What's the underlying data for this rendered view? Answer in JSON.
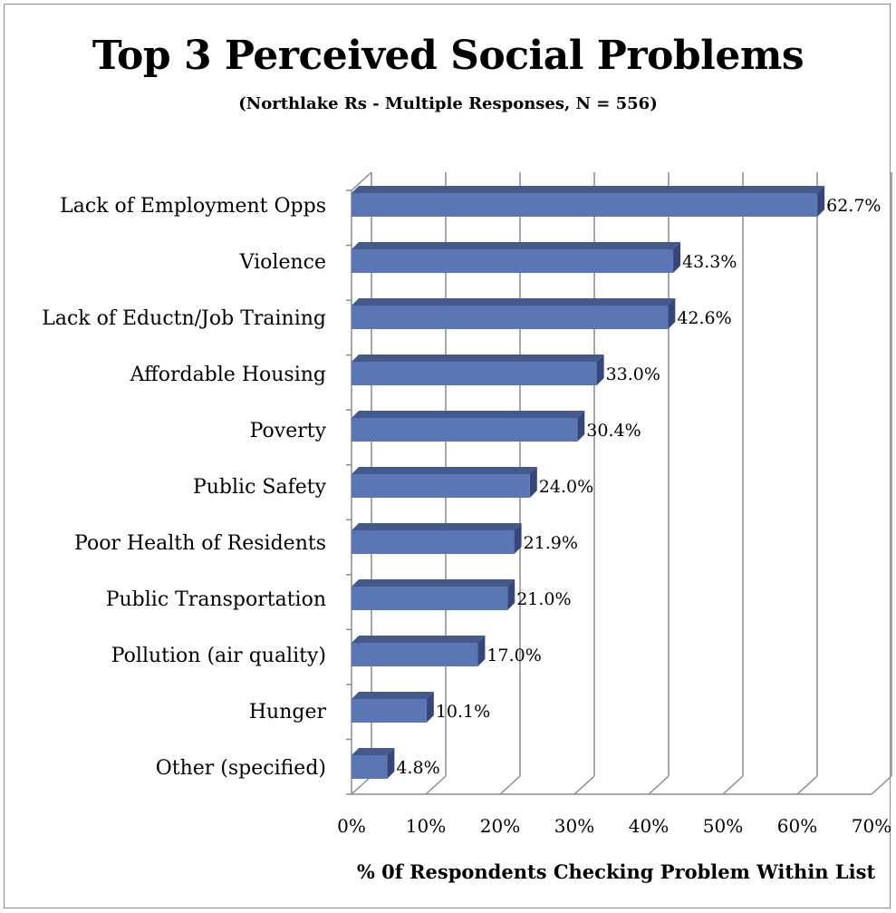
{
  "chart_data": {
    "type": "bar",
    "orientation": "horizontal",
    "title": "Top 3 Perceived Social Problems",
    "subtitle": "(Northlake Rs - Multiple Responses, N = 556)",
    "xlabel": "% 0f Respondents Checking Problem Within List",
    "ylabel": "",
    "xlim": [
      0,
      70
    ],
    "x_ticks": [
      "0%",
      "10%",
      "20%",
      "30%",
      "40%",
      "50%",
      "60%",
      "70%"
    ],
    "grid": "vertical",
    "bar_color": "#5b76b5",
    "categories": [
      "Lack of Employment Opps",
      "Violence",
      "Lack of Eductn/Job Training",
      "Affordable Housing",
      "Poverty",
      "Public Safety",
      "Poor Health of Residents",
      "Public Transportation",
      "Pollution (air quality)",
      "Hunger",
      "Other (specified)"
    ],
    "values": [
      62.7,
      43.3,
      42.6,
      33.0,
      30.4,
      24.0,
      21.9,
      21.0,
      17.0,
      10.1,
      4.8
    ],
    "data_labels": [
      "62.7%",
      "43.3%",
      "42.6%",
      "33.0%",
      "30.4%",
      "24.0%",
      "21.9%",
      "21.0%",
      "17.0%",
      "10.1%",
      "4.8%"
    ]
  }
}
